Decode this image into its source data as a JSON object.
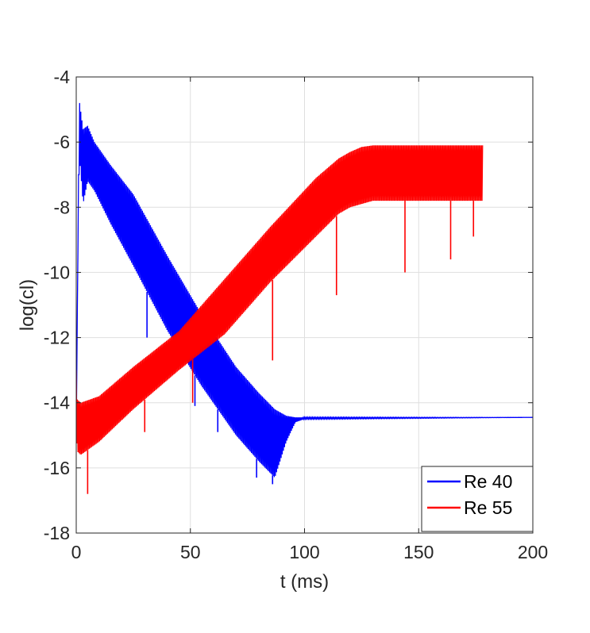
{
  "chart_data": {
    "type": "line",
    "title": "",
    "xlabel": "t (ms)",
    "ylabel": "log(cl)",
    "xlim": [
      0,
      200
    ],
    "ylim": [
      -18,
      -4
    ],
    "xticks": [
      0,
      50,
      100,
      150,
      200
    ],
    "yticks": [
      -4,
      -6,
      -8,
      -10,
      -12,
      -14,
      -16,
      -18
    ],
    "xtick_labels": [
      "0",
      "50",
      "100",
      "150",
      "200"
    ],
    "ytick_labels": [
      "-4",
      "-6",
      "-8",
      "-10",
      "-12",
      "-14",
      "-16",
      "-18"
    ],
    "grid": true,
    "legend_position": "bottom-right",
    "series": [
      {
        "name": "Re 40",
        "color": "#0000ff",
        "upper_envelope": {
          "x": [
            0,
            1,
            1.5,
            3,
            5,
            8,
            15,
            25,
            40,
            55,
            70,
            80,
            87,
            92,
            96,
            100,
            200
          ],
          "y": [
            -15,
            -7,
            -4.8,
            -5.6,
            -5.5,
            -6.0,
            -6.7,
            -7.6,
            -9.5,
            -11.3,
            -12.9,
            -13.7,
            -14.2,
            -14.4,
            -14.45,
            -14.45,
            -14.45
          ]
        },
        "lower_envelope": {
          "x": [
            0,
            1,
            1.5,
            3,
            5,
            8,
            15,
            25,
            40,
            55,
            70,
            80,
            87,
            92,
            96,
            100,
            200
          ],
          "y": [
            -15,
            -7.5,
            -6.5,
            -7.9,
            -7.2,
            -7.5,
            -8.5,
            -9.8,
            -11.8,
            -13.5,
            -15.0,
            -15.8,
            -16.3,
            -15.2,
            -14.6,
            -14.5,
            -14.45
          ]
        },
        "dips": [
          {
            "x": 31,
            "y": -12.0
          },
          {
            "x": 52,
            "y": -14.1
          },
          {
            "x": 62,
            "y": -14.9
          },
          {
            "x": 79,
            "y": -16.3
          },
          {
            "x": 86,
            "y": -16.5
          }
        ]
      },
      {
        "name": "Re 55",
        "color": "#ff0000",
        "upper_envelope": {
          "x": [
            0,
            0.5,
            2,
            10,
            25,
            45,
            65,
            85,
            105,
            115,
            120,
            125,
            130,
            140,
            178
          ],
          "y": [
            -13.0,
            -13.9,
            -14.0,
            -13.8,
            -12.9,
            -11.8,
            -10.2,
            -8.6,
            -7.1,
            -6.5,
            -6.3,
            -6.15,
            -6.1,
            -6.1,
            -6.1
          ]
        },
        "lower_envelope": {
          "x": [
            0,
            0.5,
            2,
            10,
            25,
            45,
            65,
            85,
            105,
            115,
            120,
            125,
            130,
            140,
            178
          ],
          "y": [
            -15.0,
            -15.5,
            -15.6,
            -15.2,
            -14.2,
            -13.0,
            -11.9,
            -10.3,
            -8.9,
            -8.2,
            -8.0,
            -7.9,
            -7.8,
            -7.8,
            -7.8
          ]
        },
        "dips": [
          {
            "x": 5,
            "y": -16.8
          },
          {
            "x": 30,
            "y": -14.9
          },
          {
            "x": 51,
            "y": -14.0
          },
          {
            "x": 86,
            "y": -12.7
          },
          {
            "x": 114,
            "y": -10.7
          },
          {
            "x": 144,
            "y": -10.0
          },
          {
            "x": 164,
            "y": -9.6
          },
          {
            "x": 174,
            "y": -8.9
          }
        ]
      }
    ]
  }
}
